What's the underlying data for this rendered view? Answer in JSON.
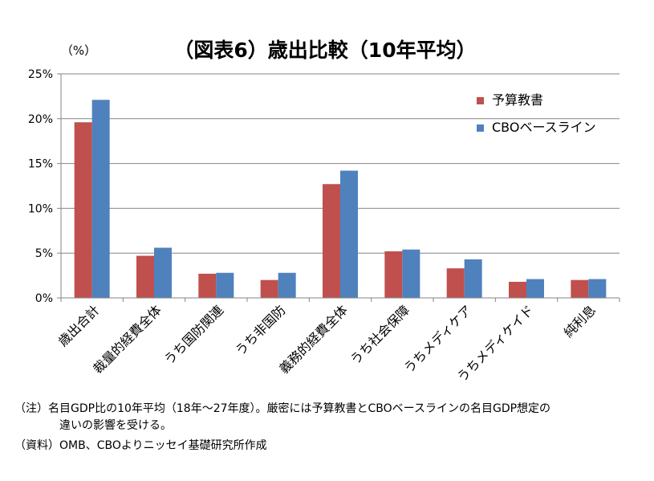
{
  "chart_data": {
    "type": "bar",
    "title": "（図表6）歳出比較（10年平均）",
    "unit_label": "（%）",
    "categories": [
      "歳出合計",
      "裁量的経費全体",
      "うち国防関連",
      "うち非国防",
      "義務的経費全体",
      "うち社会保障",
      "うちメディケア",
      "うちメディケイド",
      "純利息"
    ],
    "series": [
      {
        "name": "予算教書",
        "color": "#c0504d",
        "values": [
          19.6,
          4.7,
          2.7,
          2.0,
          12.7,
          5.2,
          3.3,
          1.8,
          2.0
        ]
      },
      {
        "name": "CBOベースライン",
        "color": "#4f81bd",
        "values": [
          22.1,
          5.6,
          2.8,
          2.8,
          14.2,
          5.4,
          4.3,
          2.1,
          2.1
        ]
      }
    ],
    "ylim": [
      0,
      25
    ],
    "yticks": [
      0,
      5,
      10,
      15,
      20,
      25
    ],
    "ytick_labels": [
      "0%",
      "5%",
      "10%",
      "15%",
      "20%",
      "25%"
    ],
    "grid": true,
    "legend_position": "top-right"
  },
  "notes": {
    "line1": "（注）名目GDP比の10年平均（18年～27年度）。厳密には予算教書とCBOベースラインの名目GDP想定の",
    "line2": "違いの影響を受ける。",
    "line3": "（資料）OMB、CBOよりニッセイ基礎研究所作成"
  }
}
